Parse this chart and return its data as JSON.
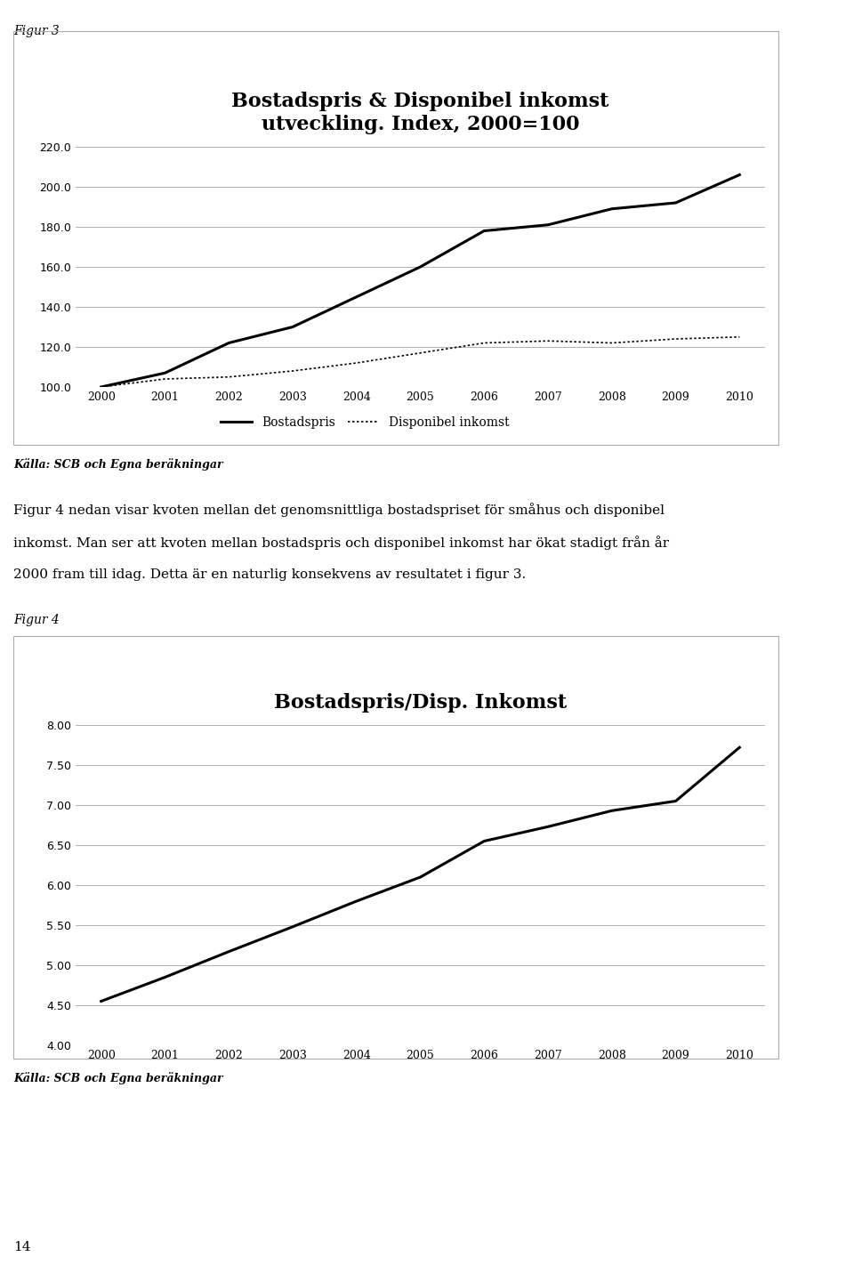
{
  "fig3_title_line1": "Bostadspris & Disponibel inkomst",
  "fig3_title_line2": "utveckling. Index, 2000=100",
  "fig4_title": "Bostadspris/Disp. Inkomst",
  "years": [
    2000,
    2001,
    2002,
    2003,
    2004,
    2005,
    2006,
    2007,
    2008,
    2009,
    2010
  ],
  "bostadspris_index": [
    100.0,
    107.0,
    122.0,
    130.0,
    145.0,
    160.0,
    178.0,
    181.0,
    189.0,
    192.0,
    206.0
  ],
  "disponibel_index": [
    100.0,
    104.0,
    105.0,
    108.0,
    112.0,
    117.0,
    122.0,
    123.0,
    122.0,
    124.0,
    125.0
  ],
  "ratio": [
    4.55,
    4.85,
    5.17,
    5.48,
    5.8,
    6.1,
    6.55,
    6.73,
    6.93,
    7.05,
    7.72
  ],
  "fig3_ylim": [
    100.0,
    220.0
  ],
  "fig3_yticks": [
    100.0,
    120.0,
    140.0,
    160.0,
    180.0,
    200.0,
    220.0
  ],
  "fig4_ylim": [
    4.0,
    8.0
  ],
  "fig4_yticks": [
    4.0,
    4.5,
    5.0,
    5.5,
    6.0,
    6.5,
    7.0,
    7.5,
    8.0
  ],
  "line_color": "#000000",
  "bg_color": "#ffffff",
  "grid_color": "#b0b0b0",
  "figur3_label": "Figur 3",
  "figur4_label": "Figur 4",
  "source_label": "Källa: SCB och Egna beräkningar",
  "body_line1": "Figur 4 nedan visar kvoten mellan det genomsnittliga bostadspriset för småhus och disponibel",
  "body_line2": "inkomst. Man ser att kvoten mellan bostadspris och disponibel inkomst har ökat stadigt från år",
  "body_line3": "2000 fram till idag. Detta är en naturlig konsekvens av resultatet i figur 3.",
  "page_number": "14",
  "legend_bostadspris": "Bostadspris",
  "legend_disponibel": "Disponibel inkomst"
}
